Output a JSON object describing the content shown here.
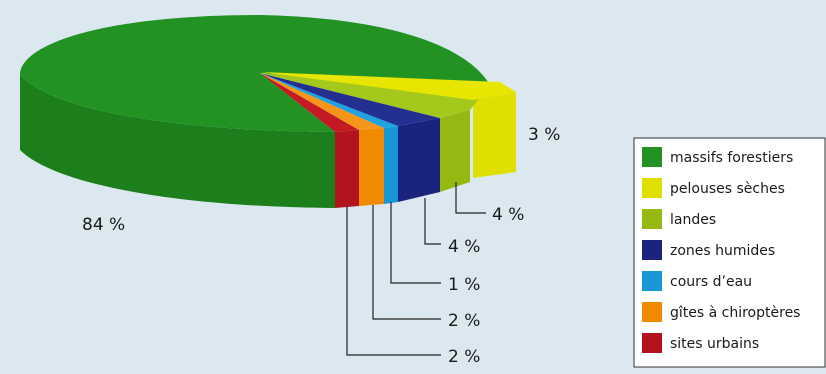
{
  "chart_data": {
    "type": "pie",
    "style": "3d-exploded",
    "title": "",
    "legend_position": "right",
    "slices": [
      {
        "label": "massifs forestiers",
        "value": 84,
        "value_label": "84 %",
        "color": "#229322"
      },
      {
        "label": "pelouses sèches",
        "value": 3,
        "value_label": "3 %",
        "color": "#dfe000"
      },
      {
        "label": "landes",
        "value": 4,
        "value_label": "4 %",
        "color": "#95b912"
      },
      {
        "label": "zones humides",
        "value": 4,
        "value_label": "4 %",
        "color": "#1a237e"
      },
      {
        "label": "cours d’eau",
        "value": 1,
        "value_label": "1 %",
        "color": "#1797d6"
      },
      {
        "label": "gîtes à chiroptères",
        "value": 2,
        "value_label": "2 %",
        "color": "#f08a00"
      },
      {
        "label": "sites urbains",
        "value": 2,
        "value_label": "2 %",
        "color": "#b3131c"
      }
    ]
  }
}
